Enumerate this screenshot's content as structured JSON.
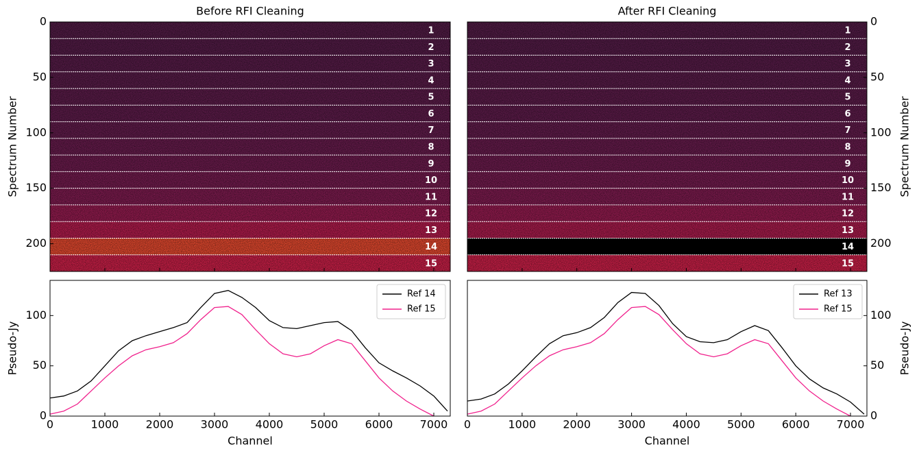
{
  "chart_data": [
    {
      "type": "heatmap",
      "title": "Before RFI Cleaning",
      "ylabel": "Spectrum Number",
      "y_axis_side": "left",
      "xlim": [
        0,
        7300
      ],
      "xticks": [
        0,
        1000,
        2000,
        3000,
        4000,
        5000,
        6000,
        7000
      ],
      "xtick_labels_visible": false,
      "ylim": [
        225,
        0
      ],
      "yticks": [
        0,
        50,
        100,
        150,
        200
      ],
      "band_edges": [
        0,
        15,
        30,
        45,
        60,
        75,
        90,
        105,
        120,
        135,
        150,
        165,
        180,
        195,
        210,
        225
      ],
      "band_labels": [
        "1",
        "2",
        "3",
        "4",
        "5",
        "6",
        "7",
        "8",
        "9",
        "10",
        "11",
        "12",
        "13",
        "14",
        "15"
      ],
      "band_colors": [
        "#4e1a42",
        "#4f1a43",
        "#521a44",
        "#531a44",
        "#561a45",
        "#581a46",
        "#5c1a47",
        "#611a48",
        "#661a49",
        "#6d1a4a",
        "#771a4b",
        "#8c1a4b",
        "#a81a48",
        "#d8452c",
        "#c01e44"
      ]
    },
    {
      "type": "heatmap",
      "title": "After RFI Cleaning",
      "ylabel": "Spectrum Number",
      "y_axis_side": "right",
      "xlim": [
        0,
        7300
      ],
      "xticks": [
        0,
        1000,
        2000,
        3000,
        4000,
        5000,
        6000,
        7000
      ],
      "xtick_labels_visible": false,
      "ylim": [
        225,
        0
      ],
      "yticks": [
        0,
        50,
        100,
        150,
        200
      ],
      "band_edges": [
        0,
        15,
        30,
        45,
        60,
        75,
        90,
        105,
        120,
        135,
        150,
        165,
        180,
        195,
        210,
        225
      ],
      "band_labels": [
        "1",
        "2",
        "3",
        "4",
        "5",
        "6",
        "7",
        "8",
        "9",
        "10",
        "11",
        "12",
        "13",
        "14",
        "15"
      ],
      "band_colors": [
        "#4e1a42",
        "#4f1a43",
        "#521a44",
        "#531a44",
        "#561a45",
        "#581a46",
        "#5c1a47",
        "#611a48",
        "#661a49",
        "#6d1a4a",
        "#771a4b",
        "#8c1a4b",
        "#a01a48",
        "#000000",
        "#c01e44"
      ]
    },
    {
      "type": "line",
      "xlabel": "Channel",
      "ylabel": "Pseudo-Jy",
      "y_axis_side": "left",
      "legend": "upper right",
      "xlim": [
        0,
        7300
      ],
      "xticks": [
        0,
        1000,
        2000,
        3000,
        4000,
        5000,
        6000,
        7000
      ],
      "xtick_labels_visible": true,
      "ylim": [
        0,
        135
      ],
      "yticks": [
        0,
        50,
        100
      ],
      "x": [
        0,
        250,
        500,
        750,
        1000,
        1250,
        1500,
        1750,
        2000,
        2250,
        2500,
        2750,
        3000,
        3250,
        3500,
        3750,
        4000,
        4250,
        4500,
        4750,
        5000,
        5250,
        5500,
        5750,
        6000,
        6250,
        6500,
        6750,
        7000,
        7250
      ],
      "series": [
        {
          "name": "Ref 14",
          "color": "#000000",
          "values": [
            18,
            20,
            25,
            35,
            50,
            65,
            75,
            80,
            84,
            88,
            93,
            108,
            122,
            125,
            118,
            108,
            95,
            88,
            87,
            90,
            93,
            94,
            85,
            68,
            53,
            45,
            38,
            30,
            20,
            5
          ]
        },
        {
          "name": "Ref 15",
          "color": "#f0208c",
          "values": [
            2,
            5,
            12,
            25,
            38,
            50,
            60,
            66,
            69,
            73,
            82,
            96,
            108,
            109,
            101,
            86,
            72,
            62,
            59,
            62,
            70,
            76,
            72,
            55,
            38,
            25,
            15,
            7,
            0,
            null
          ]
        }
      ]
    },
    {
      "type": "line",
      "xlabel": "Channel",
      "ylabel": "Pseudo-Jy",
      "y_axis_side": "right",
      "legend": "upper right",
      "xlim": [
        0,
        7300
      ],
      "xticks": [
        0,
        1000,
        2000,
        3000,
        4000,
        5000,
        6000,
        7000
      ],
      "xtick_labels_visible": true,
      "ylim": [
        0,
        135
      ],
      "yticks": [
        0,
        50,
        100
      ],
      "x": [
        0,
        250,
        500,
        750,
        1000,
        1250,
        1500,
        1750,
        2000,
        2250,
        2500,
        2750,
        3000,
        3250,
        3500,
        3750,
        4000,
        4250,
        4500,
        4750,
        5000,
        5250,
        5500,
        5750,
        6000,
        6250,
        6500,
        6750,
        7000,
        7250
      ],
      "series": [
        {
          "name": "Ref 13",
          "color": "#000000",
          "values": [
            15,
            17,
            22,
            32,
            45,
            59,
            72,
            80,
            83,
            88,
            98,
            113,
            123,
            122,
            110,
            92,
            79,
            74,
            73,
            76,
            84,
            90,
            85,
            68,
            50,
            37,
            28,
            22,
            14,
            2
          ]
        },
        {
          "name": "Ref 15",
          "color": "#f0208c",
          "values": [
            2,
            5,
            12,
            25,
            38,
            50,
            60,
            66,
            69,
            73,
            82,
            96,
            108,
            109,
            101,
            86,
            72,
            62,
            59,
            62,
            70,
            76,
            72,
            55,
            38,
            25,
            15,
            7,
            0,
            null
          ]
        }
      ]
    }
  ]
}
